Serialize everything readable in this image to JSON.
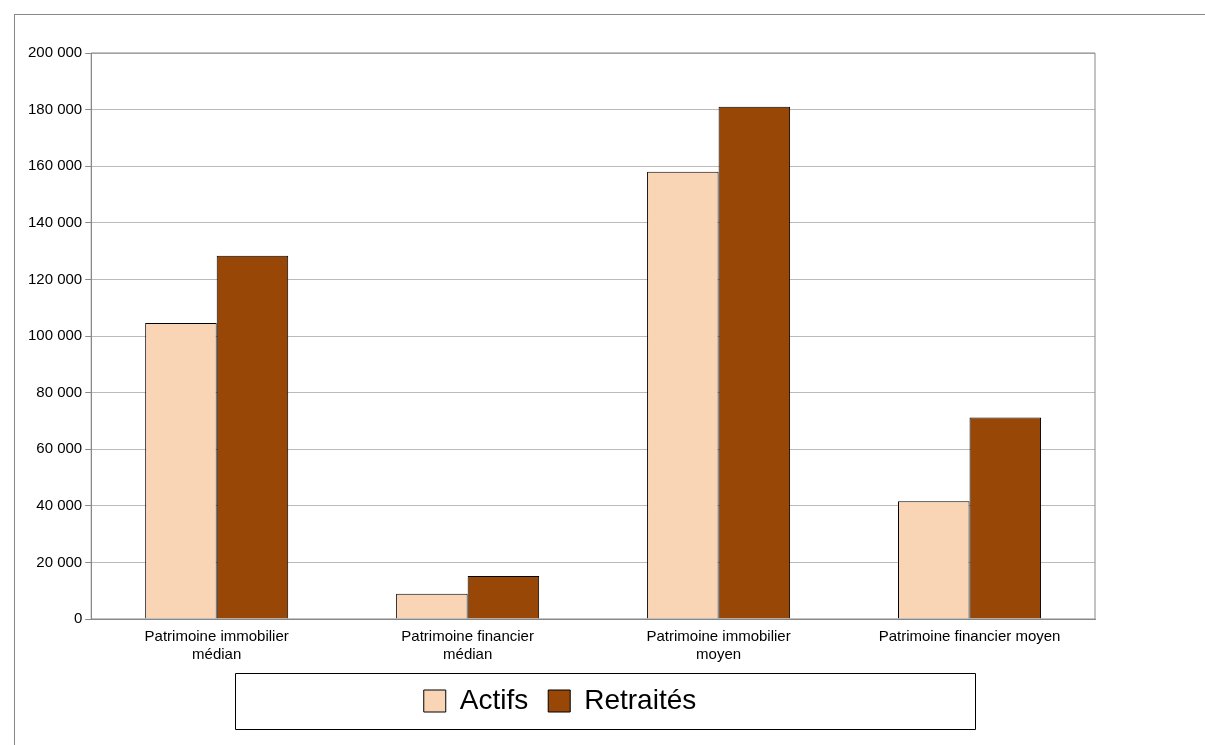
{
  "chart_data": {
    "type": "bar",
    "categories": [
      "Patrimoine immobilier médian",
      "Patrimoine financier médian",
      "Patrimoine immobilier moyen",
      "Patrimoine financier moyen"
    ],
    "series": [
      {
        "name": "Actifs",
        "color": "#fad5b5",
        "values": [
          104600,
          8900,
          158000,
          41600
        ]
      },
      {
        "name": "Retraités",
        "color": "#994707",
        "values": [
          128400,
          15200,
          181000,
          71200
        ]
      }
    ],
    "ylim": [
      0,
      200000
    ],
    "yticks": [
      {
        "value": 0,
        "label": "0"
      },
      {
        "value": 20000,
        "label": "20 000"
      },
      {
        "value": 40000,
        "label": "40 000"
      },
      {
        "value": 60000,
        "label": "60 000"
      },
      {
        "value": 80000,
        "label": "80 000"
      },
      {
        "value": 100000,
        "label": "100 000"
      },
      {
        "value": 120000,
        "label": "120 000"
      },
      {
        "value": 140000,
        "label": "140 000"
      },
      {
        "value": 160000,
        "label": "160 000"
      },
      {
        "value": 180000,
        "label": "180 000"
      },
      {
        "value": 200000,
        "label": "200 000"
      }
    ],
    "grid": "y",
    "legend": "bottom"
  }
}
